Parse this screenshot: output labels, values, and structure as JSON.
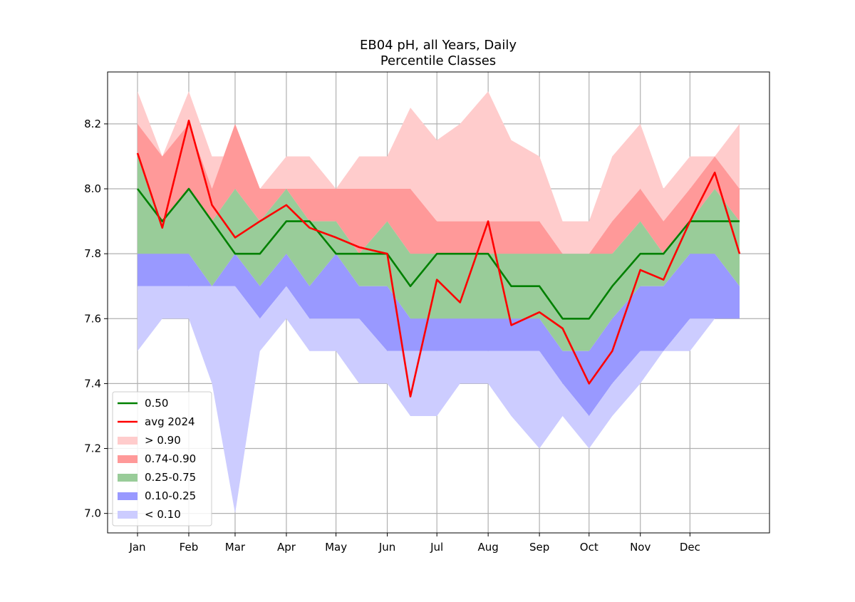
{
  "chart_data": {
    "type": "area",
    "title": "EB04 pH, all Years, Daily",
    "subtitle": "Percentile Classes",
    "xlabel": "",
    "ylabel": "",
    "ylim": [
      6.94,
      8.36
    ],
    "yticks": [
      "7.0",
      "7.2",
      "7.4",
      "7.6",
      "7.8",
      "8.0",
      "8.2"
    ],
    "months": [
      "Jan",
      "Feb",
      "Mar",
      "Apr",
      "May",
      "Jun",
      "Jul",
      "Aug",
      "Sep",
      "Oct",
      "Nov",
      "Dec"
    ],
    "grid": true,
    "legend_position": "bottom-left",
    "colors": {
      "p90_plus": "#ffcccc",
      "p74_90": "#ff9999",
      "p25_75": "#99cc99",
      "p10_25": "#9999ff",
      "p10_minus": "#ccccff",
      "median": "#008000",
      "avg": "#ff0000"
    },
    "legend": [
      {
        "label": "0.50",
        "kind": "line",
        "color": "#008000"
      },
      {
        "label": "avg 2024",
        "kind": "line",
        "color": "#ff0000"
      },
      {
        "label": "> 0.90",
        "kind": "patch",
        "color": "#ffcccc"
      },
      {
        "label": "0.74-0.90",
        "kind": "patch",
        "color": "#ff9999"
      },
      {
        "label": "0.25-0.75",
        "kind": "patch",
        "color": "#99cc99"
      },
      {
        "label": "0.10-0.25",
        "kind": "patch",
        "color": "#9999ff"
      },
      {
        "label": "< 0.10",
        "kind": "patch",
        "color": "#ccccff"
      }
    ],
    "day_of_year_x": [
      1,
      16,
      32,
      46,
      60,
      75,
      91,
      105,
      121,
      135,
      152,
      166,
      182,
      196,
      213,
      227,
      244,
      258,
      274,
      288,
      305,
      319,
      335,
      350,
      365
    ],
    "series": [
      {
        "name": "max",
        "values": [
          8.3,
          8.1,
          8.3,
          8.1,
          8.1,
          8.0,
          8.1,
          8.1,
          8.0,
          8.1,
          8.1,
          8.25,
          8.15,
          8.2,
          8.3,
          8.15,
          8.1,
          7.9,
          7.9,
          8.1,
          8.2,
          8.0,
          8.1,
          8.1,
          8.2
        ]
      },
      {
        "name": "p90",
        "values": [
          8.2,
          8.1,
          8.2,
          8.0,
          8.2,
          8.0,
          8.0,
          8.0,
          8.0,
          8.0,
          8.0,
          8.0,
          7.9,
          7.9,
          7.9,
          7.9,
          7.9,
          7.8,
          7.8,
          7.9,
          8.0,
          7.9,
          8.0,
          8.1,
          8.0
        ]
      },
      {
        "name": "p75",
        "values": [
          8.1,
          7.9,
          8.0,
          7.9,
          8.0,
          7.9,
          8.0,
          7.9,
          7.9,
          7.8,
          7.9,
          7.8,
          7.8,
          7.8,
          7.8,
          7.8,
          7.8,
          7.8,
          7.8,
          7.8,
          7.9,
          7.8,
          7.9,
          8.0,
          7.9
        ]
      },
      {
        "name": "p25",
        "values": [
          7.8,
          7.8,
          7.8,
          7.7,
          7.8,
          7.7,
          7.8,
          7.7,
          7.8,
          7.7,
          7.7,
          7.6,
          7.6,
          7.6,
          7.6,
          7.6,
          7.6,
          7.5,
          7.5,
          7.6,
          7.7,
          7.7,
          7.8,
          7.8,
          7.7
        ]
      },
      {
        "name": "p10",
        "values": [
          7.7,
          7.7,
          7.7,
          7.7,
          7.7,
          7.6,
          7.7,
          7.6,
          7.6,
          7.6,
          7.5,
          7.5,
          7.5,
          7.5,
          7.5,
          7.5,
          7.5,
          7.4,
          7.3,
          7.4,
          7.5,
          7.5,
          7.6,
          7.6,
          7.6
        ]
      },
      {
        "name": "min",
        "values": [
          7.5,
          7.6,
          7.6,
          7.4,
          7.0,
          7.5,
          7.6,
          7.5,
          7.5,
          7.4,
          7.4,
          7.3,
          7.3,
          7.4,
          7.4,
          7.3,
          7.2,
          7.3,
          7.2,
          7.3,
          7.4,
          7.5,
          7.5,
          7.6,
          7.6
        ]
      },
      {
        "name": "0.50",
        "values": [
          8.0,
          7.9,
          8.0,
          7.9,
          7.8,
          7.8,
          7.9,
          7.9,
          7.8,
          7.8,
          7.8,
          7.7,
          7.8,
          7.8,
          7.8,
          7.7,
          7.7,
          7.6,
          7.6,
          7.7,
          7.8,
          7.8,
          7.9,
          7.9,
          7.9
        ]
      },
      {
        "name": "avg 2024",
        "values": [
          8.11,
          7.88,
          8.21,
          7.95,
          7.85,
          7.9,
          7.95,
          7.88,
          7.85,
          7.82,
          7.8,
          7.36,
          7.72,
          7.65,
          7.9,
          7.58,
          7.62,
          7.57,
          7.4,
          7.5,
          7.75,
          7.72,
          7.9,
          8.05,
          7.8
        ]
      }
    ]
  }
}
